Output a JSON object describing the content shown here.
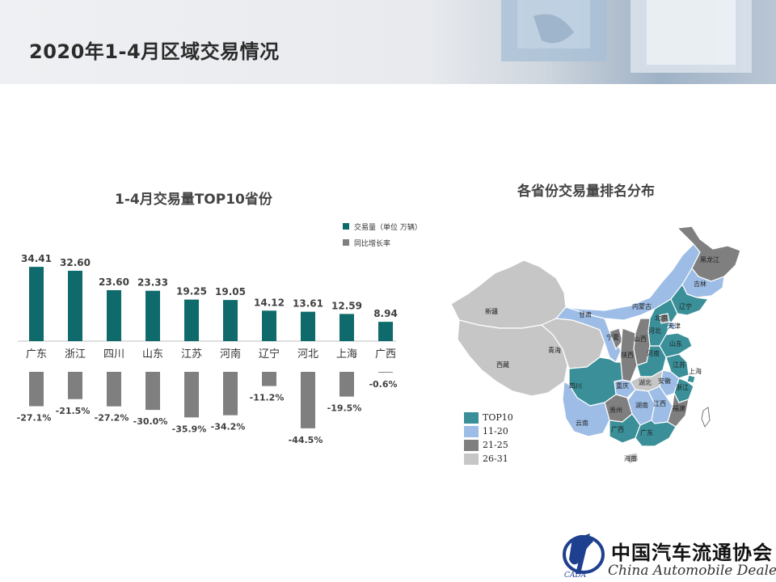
{
  "page": {
    "title": "2020年1-4月区域交易情况"
  },
  "colors": {
    "bar_primary": "#0f6b6b",
    "bar_secondary": "#7f7f7f",
    "map_top10": "#3a8f99",
    "map_11_20": "#9dbde6",
    "map_21_25": "#7f7f7f",
    "map_26_31": "#c6c6c6"
  },
  "chart_data": [
    {
      "type": "bar",
      "title": "1-4月交易量TOP10省份",
      "categories": [
        "广东",
        "浙江",
        "四川",
        "山东",
        "江苏",
        "河南",
        "辽宁",
        "河北",
        "上海",
        "广西"
      ],
      "series": [
        {
          "name": "交易量（单位 万辆）",
          "values": [
            34.41,
            32.6,
            23.6,
            23.33,
            19.25,
            19.05,
            14.12,
            13.61,
            12.59,
            8.94
          ]
        },
        {
          "name": "同比增长率",
          "values": [
            -27.1,
            -21.5,
            -27.2,
            -30.0,
            -35.9,
            -34.2,
            -11.2,
            -44.5,
            -19.5,
            -0.6
          ]
        }
      ],
      "value_labels": [
        "34.41",
        "32.60",
        "23.60",
        "23.33",
        "19.25",
        "19.05",
        "14.12",
        "13.61",
        "12.59",
        "8.94"
      ],
      "growth_labels": [
        "-27.1%",
        "-21.5%",
        "-27.2%",
        "-30.0%",
        "-35.9%",
        "-34.2%",
        "-11.2%",
        "-44.5%",
        "-19.5%",
        "-0.6%"
      ],
      "legend_position": "top-right"
    }
  ],
  "map": {
    "title": "各省份交易量排名分布",
    "legend": [
      "TOP10",
      "11-20",
      "21-25",
      "26-31"
    ],
    "region_labels": [
      "新疆",
      "西藏",
      "青海",
      "四川",
      "云南",
      "广西",
      "广东",
      "湖南",
      "贵州",
      "重庆",
      "湖北",
      "江西",
      "福建",
      "浙江",
      "上海",
      "安徽",
      "江苏",
      "山东",
      "河南",
      "山西",
      "陕西",
      "宁夏",
      "甘肃",
      "内蒙古",
      "北京",
      "天津",
      "河北",
      "辽宁",
      "吉林",
      "黑龙江",
      "海南"
    ]
  },
  "footer": {
    "org_cn": "中国汽车流通协会",
    "org_en": "China Automobile Dealers"
  }
}
